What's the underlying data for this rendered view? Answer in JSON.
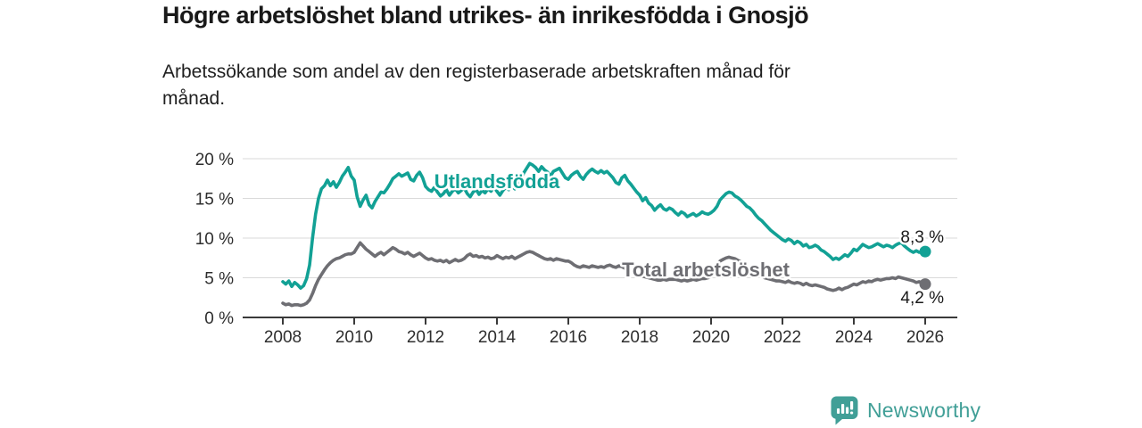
{
  "header": {
    "title": "Högre arbetslöshet bland utrikes- än inrikesfödda i Gnosjö",
    "subtitle_line1": "Arbetssökande som andel av den registerbaserade arbetskraften månad för",
    "subtitle_line2": "månad."
  },
  "logo": {
    "text": "Newsworthy",
    "icon": "newsworthy-speech-bubble-chart-icon",
    "color": "#419f97"
  },
  "chart_data": {
    "type": "line",
    "title": "Högre arbetslöshet bland utrikes- än inrikesfödda i Gnosjö",
    "subtitle": "Arbetssökande som andel av den registerbaserade arbetskraften månad för månad.",
    "x_interval": "monthly",
    "xlim": [
      2008,
      2026
    ],
    "ylim": [
      0,
      20
    ],
    "grid": "horizontal",
    "x_ticks": [
      2008,
      2010,
      2012,
      2014,
      2016,
      2018,
      2020,
      2022,
      2024,
      2026
    ],
    "x_tick_labels": [
      "2008",
      "2010",
      "2012",
      "2014",
      "2016",
      "2018",
      "2020",
      "2022",
      "2024",
      "2026"
    ],
    "y_ticks": [
      0,
      5,
      10,
      15,
      20
    ],
    "y_tick_labels": [
      "0 %",
      "5 %",
      "10 %",
      "15 %",
      "20 %"
    ],
    "axis_color": "#3a3a3a",
    "grid_color": "#dadada",
    "series": [
      {
        "name": "Utlandsfödda",
        "color": "#12a195",
        "end_value": 8.3,
        "end_label": "8,3 %",
        "values": [
          4.5,
          4.2,
          4.6,
          3.9,
          4.4,
          4.1,
          3.7,
          4.0,
          4.9,
          6.6,
          10.0,
          13.0,
          15.0,
          16.2,
          16.6,
          17.3,
          16.6,
          17.1,
          16.4,
          17.0,
          17.8,
          18.3,
          18.9,
          17.8,
          17.3,
          15.2,
          14.0,
          14.8,
          15.4,
          14.2,
          13.8,
          14.6,
          15.2,
          15.8,
          15.7,
          16.2,
          16.8,
          17.5,
          17.8,
          18.1,
          17.8,
          18.0,
          18.2,
          17.4,
          17.2,
          17.9,
          18.3,
          17.6,
          16.5,
          16.1,
          15.9,
          16.4,
          15.8,
          15.3,
          15.6,
          16.1,
          15.4,
          15.9,
          16.2,
          15.7,
          16.0,
          16.3,
          15.6,
          15.2,
          15.8,
          16.1,
          15.5,
          16.0,
          15.7,
          16.2,
          15.9,
          16.4,
          15.9,
          15.4,
          16.0,
          16.4,
          16.1,
          16.6,
          16.2,
          16.8,
          17.3,
          18.2,
          18.8,
          19.4,
          19.2,
          18.9,
          18.4,
          19.0,
          18.6,
          18.3,
          17.8,
          18.4,
          18.6,
          18.8,
          18.2,
          17.6,
          17.4,
          17.9,
          18.2,
          18.4,
          17.8,
          17.4,
          18.0,
          18.4,
          18.7,
          18.4,
          18.2,
          18.5,
          18.2,
          18.4,
          18.0,
          17.6,
          17.0,
          16.8,
          17.6,
          17.9,
          17.2,
          16.8,
          16.3,
          15.8,
          15.4,
          14.7,
          15.1,
          14.4,
          14.1,
          13.5,
          13.9,
          14.2,
          13.7,
          13.5,
          13.8,
          13.6,
          13.2,
          12.9,
          13.3,
          13.1,
          12.7,
          12.9,
          13.1,
          12.8,
          13.0,
          13.3,
          13.1,
          13.0,
          13.2,
          13.5,
          14.0,
          14.8,
          15.2,
          15.6,
          15.8,
          15.7,
          15.3,
          15.1,
          14.8,
          14.4,
          14.0,
          13.8,
          13.4,
          12.9,
          12.5,
          12.2,
          11.8,
          11.4,
          11.0,
          10.7,
          10.4,
          10.1,
          9.8,
          9.6,
          9.9,
          9.7,
          9.3,
          9.6,
          9.4,
          9.0,
          9.2,
          8.8,
          8.9,
          9.1,
          8.9,
          8.5,
          8.3,
          8.0,
          7.7,
          7.3,
          7.5,
          7.3,
          7.6,
          7.9,
          7.7,
          8.1,
          8.6,
          8.4,
          8.8,
          9.2,
          9.0,
          8.8,
          8.9,
          9.1,
          9.3,
          9.1,
          8.9,
          9.1,
          9.0,
          8.8,
          9.1,
          9.3,
          9.4,
          9.0,
          8.7,
          8.4,
          8.2,
          8.4,
          8.2,
          8.3,
          8.3
        ]
      },
      {
        "name": "Total arbetslöshet",
        "color": "#6e6e73",
        "end_value": 4.2,
        "end_label": "4,2 %",
        "values": [
          1.8,
          1.6,
          1.7,
          1.5,
          1.6,
          1.6,
          1.5,
          1.6,
          1.8,
          2.2,
          3.0,
          4.0,
          4.8,
          5.4,
          6.0,
          6.5,
          6.9,
          7.2,
          7.4,
          7.5,
          7.7,
          7.9,
          8.0,
          8.0,
          8.2,
          8.8,
          9.4,
          9.0,
          8.6,
          8.3,
          8.0,
          7.7,
          8.0,
          8.2,
          7.9,
          8.2,
          8.5,
          8.8,
          8.6,
          8.3,
          8.2,
          8.0,
          8.2,
          7.9,
          7.7,
          7.9,
          8.1,
          7.8,
          7.5,
          7.3,
          7.4,
          7.2,
          7.1,
          7.2,
          7.0,
          7.2,
          6.9,
          7.1,
          7.3,
          7.1,
          7.2,
          7.4,
          7.8,
          8.0,
          7.7,
          7.8,
          7.6,
          7.7,
          7.5,
          7.6,
          7.4,
          7.5,
          7.8,
          7.6,
          7.4,
          7.6,
          7.5,
          7.7,
          7.4,
          7.6,
          7.8,
          8.0,
          8.2,
          8.3,
          8.2,
          8.0,
          7.8,
          7.6,
          7.4,
          7.3,
          7.4,
          7.2,
          7.4,
          7.3,
          7.2,
          7.1,
          7.1,
          6.9,
          6.6,
          6.4,
          6.3,
          6.5,
          6.4,
          6.3,
          6.5,
          6.4,
          6.3,
          6.4,
          6.3,
          6.5,
          6.6,
          6.4,
          6.3,
          6.5,
          6.4,
          6.2,
          6.0,
          5.8,
          5.6,
          5.5,
          5.4,
          5.2,
          5.1,
          5.0,
          4.9,
          4.8,
          4.7,
          4.7,
          4.8,
          4.7,
          4.8,
          4.8,
          4.8,
          4.7,
          4.6,
          4.7,
          4.6,
          4.7,
          4.8,
          4.7,
          4.8,
          4.9,
          4.9,
          5.0,
          5.2,
          5.6,
          6.4,
          7.1,
          7.3,
          7.5,
          7.6,
          7.5,
          7.4,
          7.2,
          7.0,
          6.7,
          6.4,
          6.1,
          5.8,
          5.6,
          5.4,
          5.2,
          5.0,
          4.9,
          4.8,
          4.7,
          4.6,
          4.6,
          4.5,
          4.4,
          4.6,
          4.4,
          4.3,
          4.4,
          4.3,
          4.1,
          4.3,
          4.1,
          4.0,
          4.1,
          4.0,
          3.9,
          3.8,
          3.6,
          3.5,
          3.4,
          3.5,
          3.7,
          3.5,
          3.7,
          3.8,
          4.0,
          4.2,
          4.1,
          4.3,
          4.5,
          4.4,
          4.6,
          4.5,
          4.7,
          4.8,
          4.7,
          4.8,
          4.9,
          4.9,
          5.0,
          4.9,
          5.1,
          5.0,
          4.9,
          4.8,
          4.7,
          4.6,
          4.4,
          4.5,
          4.3,
          4.2
        ]
      }
    ]
  }
}
